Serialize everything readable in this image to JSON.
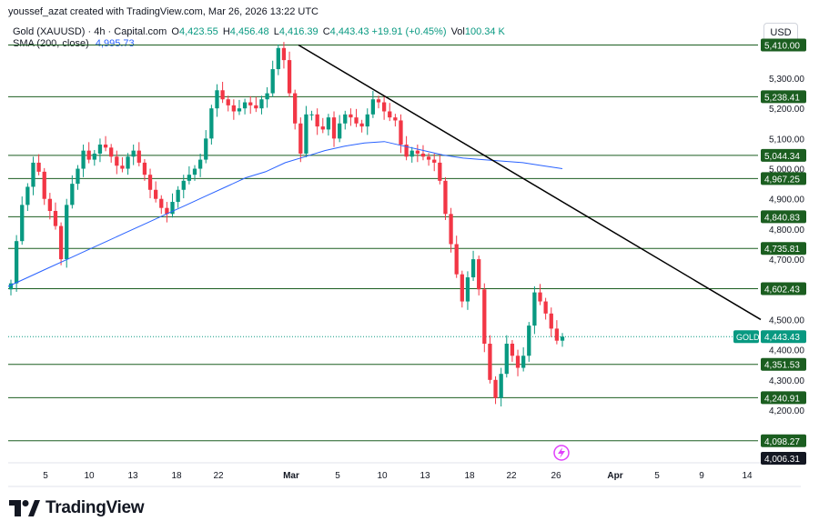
{
  "header": {
    "credit": "youssef_azat created with TradingView.com, Mar 26, 2026 13:22 UTC",
    "symbol": "Gold (XAUUSD) · 4h · Capital.com",
    "open_label": "O",
    "open": "4,423.55",
    "high_label": "H",
    "high": "4,456.48",
    "low_label": "L",
    "low": "4,416.39",
    "close_label": "C",
    "close": "4,443.43",
    "change": "+19.91 (+0.45%)",
    "volume_label": "Vol",
    "volume": "100.34 K",
    "sma_label": "SMA (200, close)",
    "sma_value": "4,995.73"
  },
  "currency": "USD",
  "brand": "TradingView",
  "colors": {
    "up": "#089981",
    "down": "#f23645",
    "sma": "#2962ff",
    "level": "#1b5e20",
    "trend": "#000000",
    "price_tag": "#089981"
  },
  "chart_data": {
    "type": "candlestick",
    "timeframe": "4h",
    "y_ticks": [
      4200,
      4300,
      4400,
      4500,
      4600,
      4700,
      4800,
      4900,
      5000,
      5100,
      5200,
      5300
    ],
    "y_tick_labels": [
      "4,200.00",
      "4,300.00",
      "4,400.00",
      "4,500.00",
      "4,600.00",
      "4,700.00",
      "4,800.00",
      "4,900.00",
      "5,000.00",
      "5,100.00",
      "5,200.00",
      "5,300.00"
    ],
    "ylim": [
      4006.31,
      5410
    ],
    "x_ticks": [
      "5",
      "10",
      "13",
      "18",
      "22",
      "Mar",
      "5",
      "10",
      "13",
      "18",
      "22",
      "26",
      "Apr",
      "5",
      "9",
      "14"
    ],
    "horizontal_levels": [
      {
        "value": 5410.0,
        "label": "5,410.00"
      },
      {
        "value": 5238.41,
        "label": "5,238.41"
      },
      {
        "value": 5044.34,
        "label": "5,044.34"
      },
      {
        "value": 4967.25,
        "label": "4,967.25"
      },
      {
        "value": 4840.83,
        "label": "4,840.83"
      },
      {
        "value": 4735.81,
        "label": "4,735.81"
      },
      {
        "value": 4602.43,
        "label": "4,602.43"
      },
      {
        "value": 4351.53,
        "label": "4,351.53"
      },
      {
        "value": 4240.91,
        "label": "4,240.91"
      },
      {
        "value": 4098.27,
        "label": "4,098.27"
      }
    ],
    "bottom_label": "4,006.31",
    "current_price": {
      "label": "GOLD",
      "value": 4443.43,
      "value_label": "4,443.43"
    },
    "trendline": {
      "from": {
        "x_index": 0,
        "y": 5410
      },
      "to": {
        "x_index": 1,
        "y": 4500
      }
    },
    "closes": [
      4620,
      4760,
      4880,
      4940,
      5020,
      4990,
      4900,
      4860,
      4810,
      4700,
      4880,
      4950,
      5000,
      5060,
      5030,
      5050,
      5080,
      5070,
      5040,
      5010,
      5000,
      5040,
      5060,
      5020,
      4980,
      4930,
      4900,
      4870,
      4850,
      4890,
      4930,
      4960,
      4980,
      5000,
      5030,
      5100,
      5200,
      5260,
      5230,
      5210,
      5190,
      5200,
      5220,
      5210,
      5200,
      5230,
      5250,
      5330,
      5400,
      5360,
      5250,
      5150,
      5050,
      5180,
      5180,
      5140,
      5130,
      5170,
      5100,
      5150,
      5180,
      5170,
      5150,
      5140,
      5180,
      5230,
      5220,
      5190,
      5170,
      5160,
      5080,
      5040,
      5060,
      5050,
      5040,
      5030,
      5020,
      4960,
      4850,
      4750,
      4650,
      4560,
      4640,
      4700,
      4600,
      4420,
      4300,
      4240,
      4320,
      4420,
      4380,
      4340,
      4380,
      4480,
      4590,
      4560,
      4520,
      4470,
      4430,
      4443.43
    ],
    "sma": [
      4610,
      4640,
      4670,
      4700,
      4730,
      4760,
      4790,
      4820,
      4850,
      4880,
      4910,
      4940,
      4970,
      4990,
      5020,
      5040,
      5060,
      5075,
      5085,
      5090,
      5075,
      5060,
      5045,
      5035,
      5030,
      5025,
      5020,
      5010,
      5000
    ],
    "x_axis_range": [
      "Jan 31",
      "Apr 16"
    ]
  }
}
